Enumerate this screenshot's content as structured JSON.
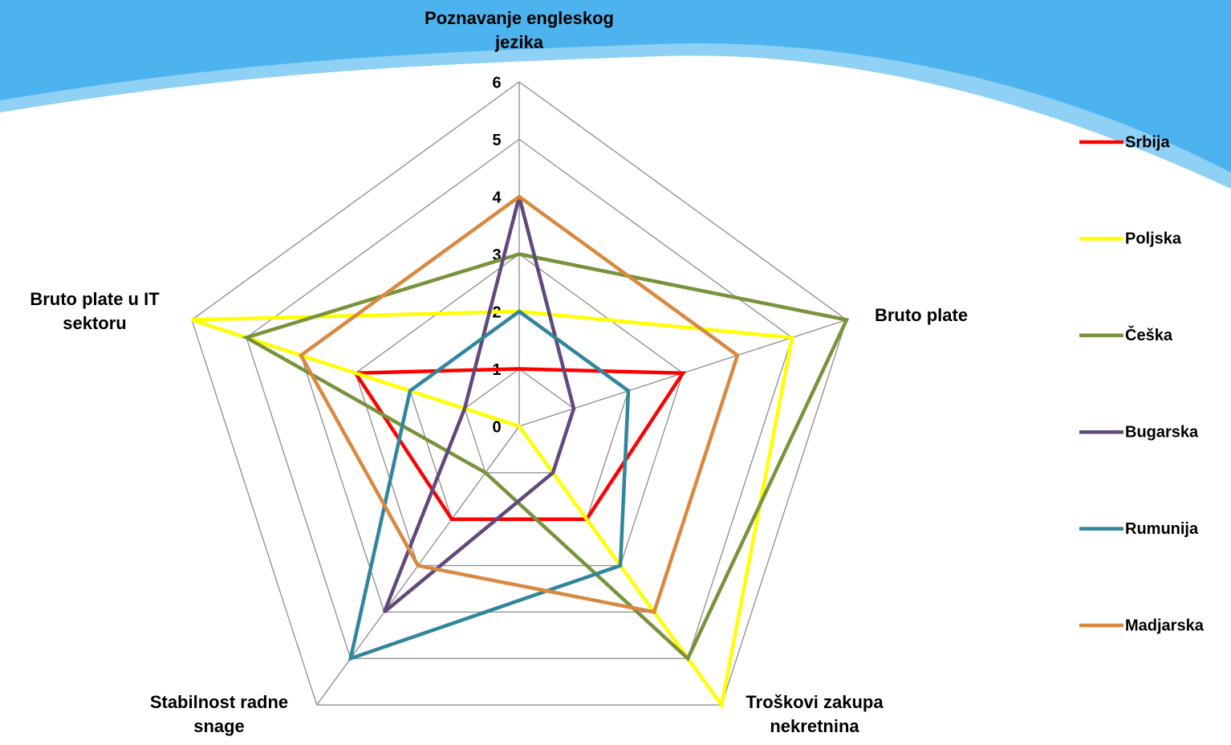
{
  "chart_data": {
    "type": "radar",
    "categories": [
      "Poznavanje engleskog jezika",
      "Bruto plate",
      "Troškovi zakupa nekretnina",
      "Stabilnost radne snage",
      "Bruto plate u IT sektoru"
    ],
    "series": [
      {
        "name": "Srbija",
        "color": "#ff0000",
        "values": [
          1,
          3,
          2,
          2,
          3
        ]
      },
      {
        "name": "Poljska",
        "color": "#ffff00",
        "values": [
          2,
          5,
          6,
          0,
          6
        ]
      },
      {
        "name": "Češka",
        "color": "#77933c",
        "values": [
          3,
          6,
          5,
          1,
          5
        ]
      },
      {
        "name": "Bugarska",
        "color": "#604a7b",
        "values": [
          4,
          1,
          1,
          4,
          1
        ]
      },
      {
        "name": "Rumunija",
        "color": "#31859c",
        "values": [
          2,
          2,
          3,
          5,
          2
        ]
      },
      {
        "name": "Madjarska",
        "color": "#d9883f",
        "values": [
          4,
          4,
          4,
          3,
          4
        ]
      }
    ],
    "rlim": [
      0,
      6
    ],
    "rticks": [
      0,
      1,
      2,
      3,
      4,
      5,
      6
    ],
    "legend": "right"
  }
}
